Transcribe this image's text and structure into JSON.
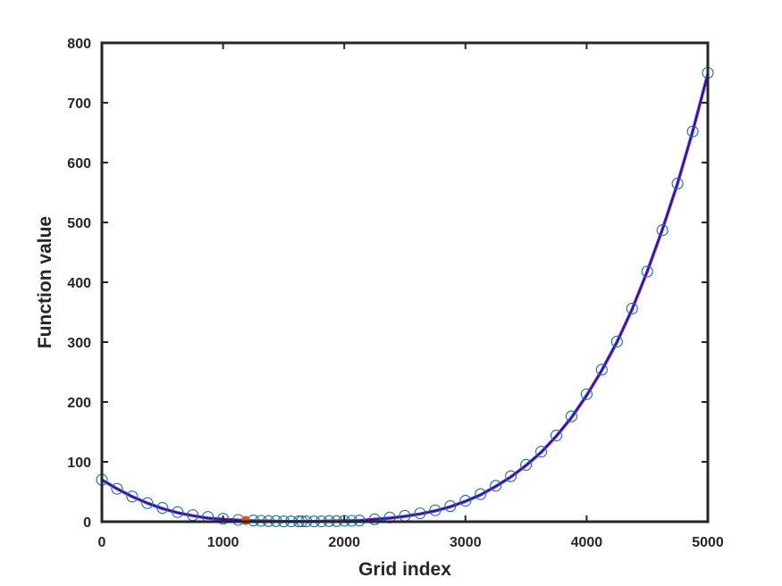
{
  "chart_data": {
    "type": "line",
    "title": "",
    "xlabel": "Grid index",
    "ylabel": "Function value",
    "xlim": [
      0,
      5000
    ],
    "ylim": [
      0,
      800
    ],
    "xticks": [
      0,
      1000,
      2000,
      3000,
      4000,
      5000
    ],
    "yticks": [
      0,
      100,
      200,
      300,
      400,
      500,
      600,
      700,
      800
    ],
    "grid": false,
    "legend": "none",
    "colors": {
      "line": "#7e2f8e",
      "line_overlay": "#0000ff",
      "markers": "#0072bd",
      "highlight": "#d95319",
      "axes": "#262626"
    },
    "series": [
      {
        "style": "line",
        "x": [
          0,
          125,
          250,
          375,
          500,
          625,
          750,
          875,
          1000,
          1125,
          1187,
          1250,
          1375,
          1500,
          1625,
          1750,
          1875,
          2000,
          2125,
          2250,
          2375,
          2500,
          2625,
          2750,
          2875,
          3000,
          3125,
          3250,
          3375,
          3500,
          3625,
          3750,
          3875,
          4000,
          4125,
          4250,
          4375,
          4500,
          4625,
          4750,
          4875,
          5000
        ],
        "y": [
          70,
          55,
          42,
          31,
          22,
          15,
          10,
          6,
          4,
          2.5,
          2,
          1.5,
          1,
          0.5,
          0.5,
          0.5,
          1,
          1.5,
          2,
          4,
          6,
          9,
          13,
          18,
          25,
          34,
          45,
          59,
          75,
          94,
          116,
          143,
          174,
          211,
          253,
          300,
          355,
          418,
          488,
          565,
          652,
          748
        ]
      },
      {
        "style": "markers",
        "x": [
          0,
          125,
          250,
          375,
          500,
          625,
          750,
          875,
          1000,
          1125,
          1250,
          1312,
          1375,
          1437,
          1500,
          1562,
          1625,
          1650,
          1687,
          1750,
          1812,
          1875,
          1937,
          2000,
          2062,
          2125,
          2250,
          2375,
          2500,
          2625,
          2750,
          2875,
          3000,
          3125,
          3250,
          3375,
          3500,
          3625,
          3750,
          3875,
          4000,
          4125,
          4250,
          4375,
          4500,
          4625,
          4750,
          4875,
          5000
        ],
        "y": [
          70,
          55,
          42,
          31,
          23,
          16,
          11,
          8,
          5,
          3,
          2,
          1.5,
          1,
          1,
          0.5,
          0.5,
          0.5,
          0.5,
          0.5,
          0.5,
          0.5,
          1,
          1,
          1.5,
          1.5,
          2,
          4,
          7,
          10,
          14,
          19,
          26,
          35,
          46,
          60,
          76,
          95,
          117,
          144,
          176,
          213,
          254,
          301,
          356,
          418,
          487,
          565,
          652,
          750
        ]
      },
      {
        "style": "highlight-point",
        "x": [
          1187
        ],
        "y": [
          2
        ]
      }
    ]
  }
}
